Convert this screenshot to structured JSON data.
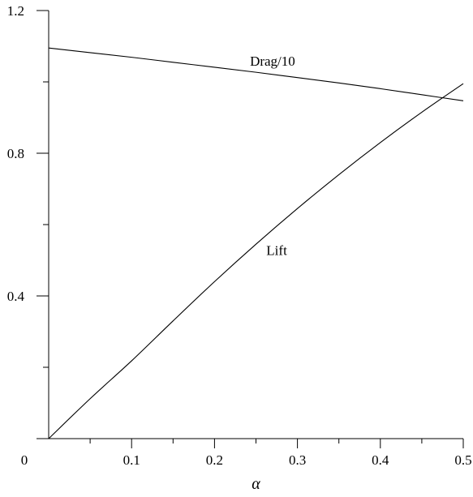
{
  "chart_data": {
    "type": "line",
    "title": "",
    "xlabel": "α",
    "ylabel": "",
    "xlim": [
      0,
      0.5
    ],
    "ylim": [
      0,
      1.2
    ],
    "x_ticks": [
      0.1,
      0.2,
      0.3,
      0.4,
      0.5
    ],
    "x_tick_labels": [
      "0.1",
      "0.2",
      "0.3",
      "0.4",
      "0.5"
    ],
    "x_minor_ticks": [
      0.05,
      0.15,
      0.25,
      0.35,
      0.45
    ],
    "y_ticks": [
      0.4,
      0.8,
      1.2
    ],
    "y_tick_labels": [
      "0.4",
      "0.8",
      "1.2"
    ],
    "y_minor_ticks": [
      0.2,
      0.6,
      1.0
    ],
    "origin_label": "0",
    "grid": false,
    "legend": "none",
    "series": [
      {
        "name": "Drag/10",
        "x": [
          0,
          0.05,
          0.1,
          0.15,
          0.2,
          0.25,
          0.3,
          0.35,
          0.4,
          0.45,
          0.5
        ],
        "values": [
          1.095,
          1.082,
          1.069,
          1.055,
          1.041,
          1.027,
          1.012,
          0.997,
          0.981,
          0.964,
          0.947
        ]
      },
      {
        "name": "Lift",
        "x": [
          0,
          0.05,
          0.1,
          0.15,
          0.2,
          0.25,
          0.3,
          0.35,
          0.4,
          0.45,
          0.5
        ],
        "values": [
          0,
          0.112,
          0.218,
          0.33,
          0.44,
          0.545,
          0.645,
          0.74,
          0.83,
          0.915,
          0.995
        ]
      }
    ],
    "annotations": [
      {
        "text": "Drag/10",
        "series": 0,
        "x": 0.27,
        "y": 1.045
      },
      {
        "text": "Lift",
        "series": 1,
        "x": 0.275,
        "y": 0.515
      }
    ]
  }
}
